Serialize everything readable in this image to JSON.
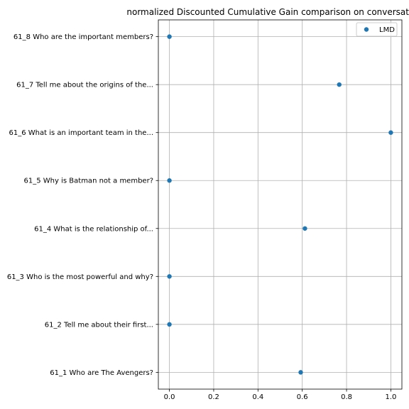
{
  "chart_data": {
    "type": "scatter",
    "title": "normalized Discounted Cumulative Gain comparison on conversat",
    "xlabel": "",
    "ylabel": "",
    "xlim": [
      -0.05,
      1.05
    ],
    "xticks": [
      0.0,
      0.2,
      0.4,
      0.6,
      0.8,
      1.0
    ],
    "xtick_labels": [
      "0.0",
      "0.2",
      "0.4",
      "0.6",
      "0.8",
      "1.0"
    ],
    "categories": [
      "61_1 Who are The Avengers?",
      "61_2 Tell me about their first...",
      "61_3 Who is the most powerful and why?",
      "61_4 What is the relationship of...",
      "61_5 Why is Batman not a member?",
      "61_6 What is an important team in the...",
      "61_7 Tell me about the origins of the...",
      "61_8 Who are the important members?"
    ],
    "series": [
      {
        "name": "LMD",
        "color": "#1f77b4",
        "values": [
          0.593,
          0.0,
          0.0,
          0.612,
          0.0,
          1.0,
          0.767,
          0.0
        ]
      }
    ],
    "grid": true,
    "legend_position": "top-right"
  }
}
